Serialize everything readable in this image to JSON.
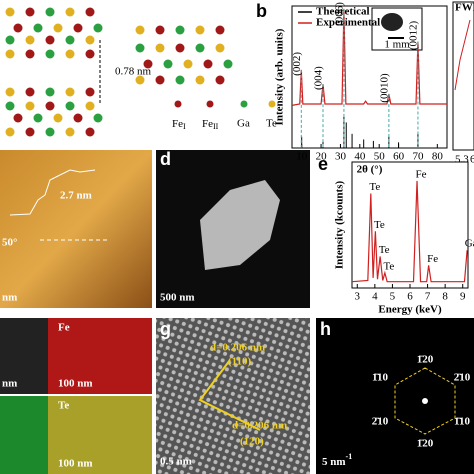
{
  "panels": {
    "a": {
      "distance": "0.78 nm",
      "legend": [
        {
          "text": "Fe",
          "sub": "I"
        },
        {
          "text": "Fe",
          "sub": "II"
        },
        {
          "text": "Ga"
        },
        {
          "text": "Te"
        }
      ]
    },
    "b": {
      "label": "b",
      "inset_scale": "1 mm",
      "side_title": "FWH",
      "side_ticks": [
        "5.3",
        "6"
      ]
    },
    "c": {
      "height": "2.7 nm",
      "angle": "50°",
      "scale": "nm"
    },
    "d": {
      "label": "d",
      "scale": "500 nm"
    },
    "e": {
      "label": "e"
    },
    "f": {
      "maps": [
        "Fe",
        "Te"
      ],
      "scales": [
        "nm",
        "100 nm",
        "100 nm"
      ]
    },
    "g": {
      "label": "g",
      "d1": "d=0.206 nm",
      "plane1": "(110)",
      "d2": "d=0.206 nm",
      "plane2": "(120)",
      "scale": "0.5 nm"
    },
    "h": {
      "label": "h",
      "spots": [
        "1̄20",
        "1̄10",
        "2̄10",
        "2̄10",
        "1̄10",
        "1̄20"
      ],
      "scale": "5 nm",
      "scale_sup": "-1"
    }
  },
  "chart_data": [
    {
      "type": "line",
      "xlabel": "2θ (°)",
      "ylabel": "Intensity (arb. units)",
      "xlim": [
        5,
        85
      ],
      "ylim": [
        0,
        100
      ],
      "xticks": [
        10,
        20,
        30,
        40,
        50,
        60,
        70,
        80
      ],
      "series": [
        {
          "name": "Theoretical",
          "color": "#000000",
          "style": "stems",
          "x": [
            10,
            21,
            31.8,
            33,
            36,
            42,
            47,
            55,
            60,
            70
          ],
          "values": [
            8,
            5,
            22,
            18,
            10,
            6,
            5,
            8,
            4,
            10
          ]
        },
        {
          "name": "Experimental",
          "color": "#d02020",
          "x": [
            5,
            9,
            9.8,
            10.6,
            20,
            21,
            22,
            30.8,
            31.8,
            32.8,
            42,
            43,
            44,
            54,
            55,
            56,
            69,
            70,
            71,
            85
          ],
          "values": [
            30,
            31,
            55,
            31,
            31,
            45,
            31,
            31,
            98,
            31,
            31,
            33,
            31,
            31,
            38,
            31,
            31,
            75,
            31,
            31
          ]
        }
      ],
      "annotations": [
        {
          "text": "(002)",
          "x": 9.8
        },
        {
          "text": "(004)",
          "x": 21
        },
        {
          "text": "(006)",
          "x": 31.8
        },
        {
          "text": "(0010)",
          "x": 55
        },
        {
          "text": "(0012)",
          "x": 70
        }
      ]
    },
    {
      "type": "line",
      "xlabel": "Energy (keV)",
      "ylabel": "Intensity (kcounts)",
      "xlim": [
        2.7,
        9.3
      ],
      "ylim": [
        0,
        100
      ],
      "xticks": [
        3,
        4,
        5,
        6,
        7,
        8,
        9
      ],
      "series": [
        {
          "color": "#d02020",
          "x": [
            2.7,
            3.6,
            3.77,
            3.9,
            4.03,
            4.15,
            4.3,
            4.45,
            4.57,
            4.7,
            6.2,
            6.4,
            6.6,
            6.95,
            7.06,
            7.2,
            9.1,
            9.25
          ],
          "values": [
            5,
            6,
            75,
            8,
            45,
            7,
            25,
            6,
            12,
            5,
            5,
            85,
            5,
            5,
            18,
            5,
            5,
            30
          ]
        }
      ],
      "annotations": [
        {
          "text": "Te",
          "x": 3.77
        },
        {
          "text": "Te",
          "x": 4.03
        },
        {
          "text": "Te",
          "x": 4.3
        },
        {
          "text": "Te",
          "x": 4.57
        },
        {
          "text": "Fe",
          "x": 6.4
        },
        {
          "text": "Fe",
          "x": 7.06
        },
        {
          "text": "Ga",
          "x": 9.25
        }
      ]
    }
  ]
}
